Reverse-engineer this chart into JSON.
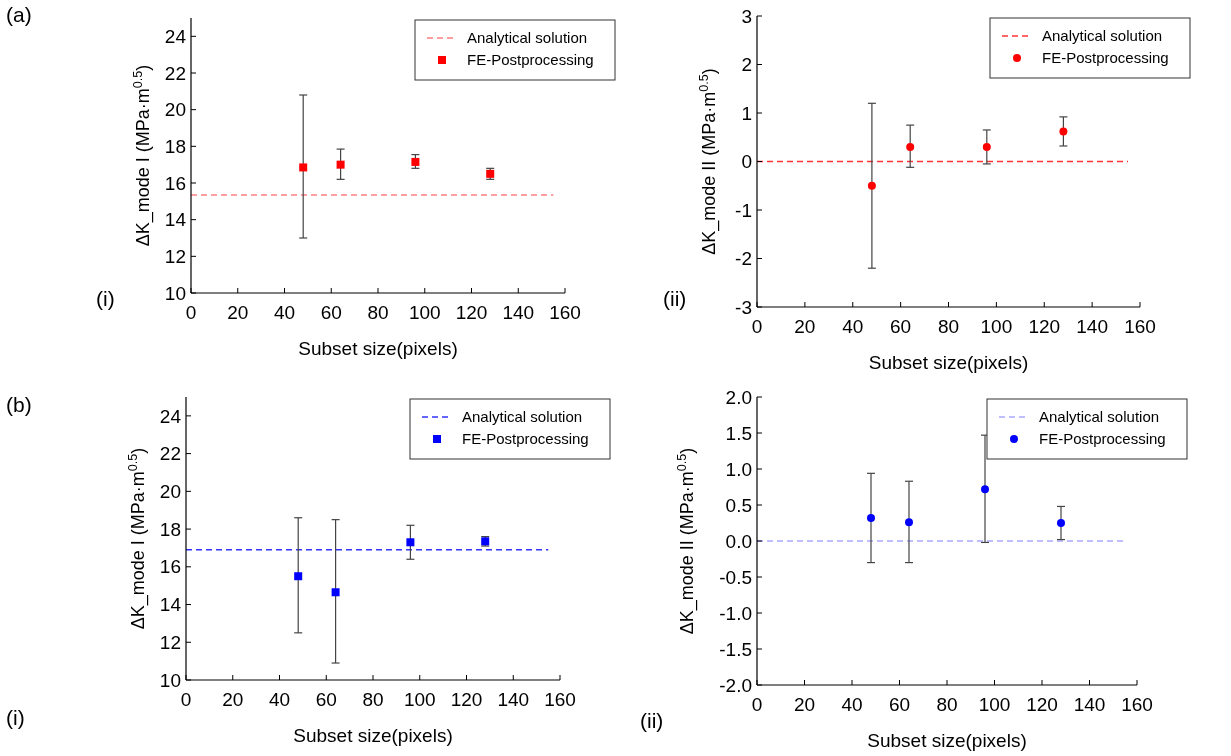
{
  "chart_data": [
    {
      "type": "scatter",
      "xlabel": "Subset size(pixels)",
      "ylabel": "ΔK_mode I (MPa·m$^{0.5}$)",
      "xlim": [
        0,
        160
      ],
      "xticks": [
        0,
        20,
        40,
        60,
        80,
        100,
        120,
        140,
        160
      ],
      "ylim": [
        10,
        25
      ],
      "yticks": [
        10,
        12,
        14,
        16,
        18,
        20,
        22,
        24
      ],
      "legend": "top right",
      "grid": false,
      "annotations": [
        "(a)",
        "(i)"
      ],
      "series": [
        {
          "name": "Analytical solution",
          "type": "line",
          "line_style": "dashed",
          "marker": "none",
          "color": "#ff8080",
          "x": [
            0,
            155
          ],
          "values": [
            15.35,
            15.35
          ]
        },
        {
          "name": "FE-Postprocessing",
          "type": "scatter",
          "marker": "square",
          "color": "#ff0000",
          "x": [
            48,
            64,
            96,
            128
          ],
          "values": [
            16.85,
            17.0,
            17.15,
            16.5
          ],
          "errors": [
            [
              13.0,
              20.8
            ],
            [
              16.2,
              17.85
            ],
            [
              16.8,
              17.55
            ],
            [
              16.2,
              16.8
            ]
          ]
        }
      ]
    },
    {
      "type": "scatter",
      "xlabel": "Subset size(pixels)",
      "ylabel": "ΔK_mode II (MPa·m$^{0.5}$)",
      "xlim": [
        0,
        160
      ],
      "xticks": [
        0,
        20,
        40,
        60,
        80,
        100,
        120,
        140,
        160
      ],
      "ylim": [
        -3,
        3
      ],
      "yticks": [
        -3,
        -2,
        -1,
        0,
        1,
        2,
        3
      ],
      "legend": "top right",
      "grid": false,
      "annotations": [
        "(ii)"
      ],
      "series": [
        {
          "name": "Analytical solution",
          "type": "line",
          "line_style": "dashed",
          "marker": "none",
          "color": "#ff3333",
          "x": [
            0,
            155
          ],
          "values": [
            0,
            0
          ]
        },
        {
          "name": "FE-Postprocessing",
          "type": "scatter",
          "marker": "circle",
          "color": "#ff0000",
          "x": [
            48,
            64,
            96,
            128
          ],
          "values": [
            -0.5,
            0.3,
            0.3,
            0.62
          ],
          "errors": [
            [
              -2.2,
              1.2
            ],
            [
              -0.12,
              0.75
            ],
            [
              -0.05,
              0.65
            ],
            [
              0.32,
              0.92
            ]
          ]
        }
      ]
    },
    {
      "type": "scatter",
      "xlabel": "Subset size(pixels)",
      "ylabel": "ΔK_mode I (MPa·m$^{0.5}$)",
      "xlim": [
        0,
        160
      ],
      "xticks": [
        0,
        20,
        40,
        60,
        80,
        100,
        120,
        140,
        160
      ],
      "ylim": [
        10,
        25
      ],
      "yticks": [
        10,
        12,
        14,
        16,
        18,
        20,
        22,
        24
      ],
      "legend": "top right",
      "grid": false,
      "annotations": [
        "(b)",
        "(i)"
      ],
      "series": [
        {
          "name": "Analytical solution",
          "type": "line",
          "line_style": "dashed",
          "marker": "none",
          "color": "#3333ff",
          "x": [
            0,
            155
          ],
          "values": [
            16.9,
            16.9
          ]
        },
        {
          "name": "FE-Postprocessing",
          "type": "scatter",
          "marker": "square",
          "color": "#0000ff",
          "x": [
            48,
            64,
            96,
            128
          ],
          "values": [
            15.5,
            14.65,
            17.3,
            17.35
          ],
          "errors": [
            [
              12.5,
              18.6
            ],
            [
              10.9,
              18.5
            ],
            [
              16.4,
              18.2
            ],
            [
              17.1,
              17.6
            ]
          ]
        }
      ]
    },
    {
      "type": "scatter",
      "xlabel": "Subset size(pixels)",
      "ylabel": "ΔK_mode II (MPa·m$^{0.5}$)",
      "xlim": [
        0,
        160
      ],
      "xticks": [
        0,
        20,
        40,
        60,
        80,
        100,
        120,
        140,
        160
      ],
      "ylim": [
        -2,
        2
      ],
      "yticks": [
        {
          "value": -2,
          "label": "-2.0"
        },
        {
          "value": -1.5,
          "label": "-1.5"
        },
        {
          "value": -1,
          "label": "-1.0"
        },
        {
          "value": -0.5,
          "label": "-0.5"
        },
        {
          "value": 0,
          "label": "0.0"
        },
        {
          "value": 0.5,
          "label": "0.5"
        },
        {
          "value": 1,
          "label": "1.0"
        },
        {
          "value": 1.5,
          "label": "1.5"
        },
        {
          "value": 2,
          "label": "2.0"
        }
      ],
      "legend": "top right",
      "grid": false,
      "annotations": [
        "(ii)"
      ],
      "series": [
        {
          "name": "Analytical solution",
          "type": "line",
          "line_style": "dashed",
          "marker": "none",
          "color": "#aaaaff",
          "x": [
            0,
            155
          ],
          "values": [
            0,
            0
          ]
        },
        {
          "name": "FE-Postprocessing",
          "type": "scatter",
          "marker": "circle",
          "color": "#0000ff",
          "x": [
            48,
            64,
            96,
            128
          ],
          "values": [
            0.32,
            0.26,
            0.72,
            0.25
          ],
          "errors": [
            [
              -0.3,
              0.94
            ],
            [
              -0.3,
              0.83
            ],
            [
              -0.02,
              1.47
            ],
            [
              0.02,
              0.48
            ]
          ]
        }
      ]
    }
  ]
}
